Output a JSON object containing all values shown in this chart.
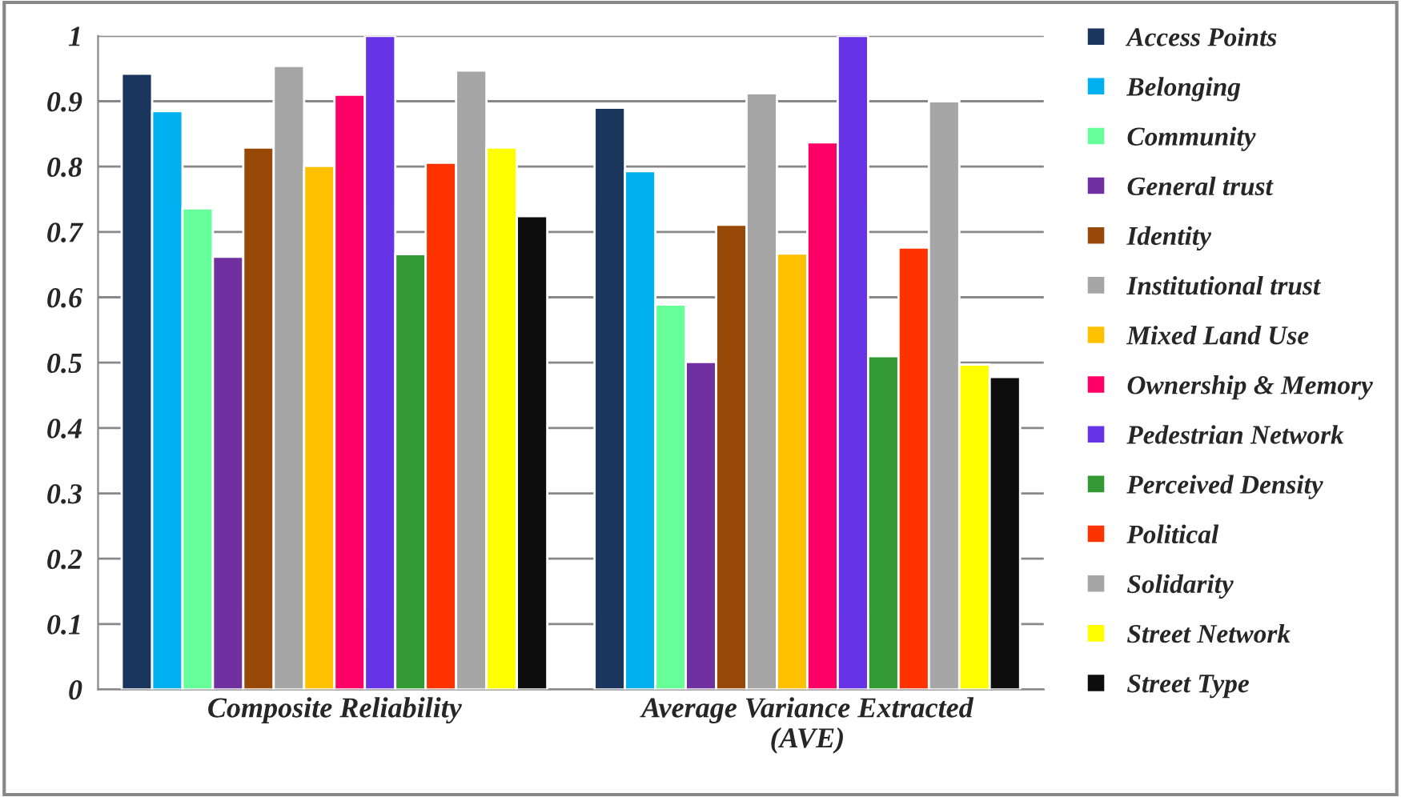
{
  "chart_data": {
    "type": "bar",
    "categories": [
      "Composite Reliability",
      "Average Variance Extracted\n(AVE)"
    ],
    "series": [
      {
        "name": "Access Points",
        "color": "#1b365d",
        "values": [
          0.942,
          0.89
        ]
      },
      {
        "name": "Belonging",
        "color": "#00b0f0",
        "values": [
          0.885,
          0.793
        ]
      },
      {
        "name": "Community",
        "color": "#66ff99",
        "values": [
          0.736,
          0.589
        ]
      },
      {
        "name": "General trust",
        "color": "#7030a0",
        "values": [
          0.662,
          0.501
        ]
      },
      {
        "name": "Identity",
        "color": "#984807",
        "values": [
          0.829,
          0.711
        ]
      },
      {
        "name": "Institutional trust",
        "color": "#a5a5a5",
        "values": [
          0.954,
          0.912
        ]
      },
      {
        "name": "Mixed Land Use",
        "color": "#ffc000",
        "values": [
          0.801,
          0.667
        ]
      },
      {
        "name": "Ownership & Memory",
        "color": "#ff0066",
        "values": [
          0.91,
          0.837
        ]
      },
      {
        "name": "Pedestrian Network",
        "color": "#6633e6",
        "values": [
          1.0,
          1.0
        ]
      },
      {
        "name": "Perceived Density",
        "color": "#339933",
        "values": [
          0.666,
          0.51
        ]
      },
      {
        "name": "Political",
        "color": "#ff3300",
        "values": [
          0.806,
          0.676
        ]
      },
      {
        "name": "Solidarity",
        "color": "#a6a6a6",
        "values": [
          0.947,
          0.9
        ]
      },
      {
        "name": "Street Network",
        "color": "#ffff00",
        "values": [
          0.829,
          0.497
        ]
      },
      {
        "name": "Street Type",
        "color": "#0d0d0d",
        "values": [
          0.724,
          0.478
        ]
      }
    ],
    "ylim": [
      0,
      1
    ],
    "yticks": [
      0,
      0.1,
      0.2,
      0.3,
      0.4,
      0.5,
      0.6,
      0.7,
      0.8,
      0.9,
      1
    ],
    "grid": "y",
    "legend": "right"
  }
}
